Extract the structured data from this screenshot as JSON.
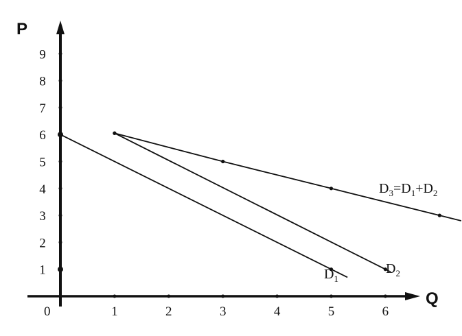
{
  "chart_data": {
    "type": "line",
    "title": "",
    "xlabel": "Q",
    "ylabel": "P",
    "xlim": [
      0,
      7.5
    ],
    "ylim": [
      0,
      10
    ],
    "x_ticks": [
      "1",
      "2",
      "3",
      "4",
      "5",
      "6"
    ],
    "y_ticks": [
      "1",
      "2",
      "3",
      "4",
      "5",
      "6",
      "7",
      "8",
      "9"
    ],
    "origin_label": "0",
    "grid": false,
    "series": [
      {
        "name": "D1",
        "label_main": "D",
        "label_sub": "1",
        "points": [
          [
            0,
            6
          ],
          [
            5,
            1
          ]
        ],
        "extend_to": [
          5.3,
          0.7
        ]
      },
      {
        "name": "D2",
        "label_main": "D",
        "label_sub": "2",
        "points": [
          [
            1,
            6.05
          ],
          [
            6,
            1
          ]
        ],
        "extend_to": [
          6.1,
          0.9
        ]
      },
      {
        "name": "D3=D1+D2",
        "label_parts": [
          "D",
          "3",
          "=D",
          "1",
          "+D",
          "2"
        ],
        "points": [
          [
            1,
            6.05
          ],
          [
            3,
            5
          ],
          [
            5,
            4
          ],
          [
            7,
            3
          ]
        ],
        "extend_to": [
          7.4,
          2.8
        ]
      }
    ],
    "color": "#111111"
  }
}
